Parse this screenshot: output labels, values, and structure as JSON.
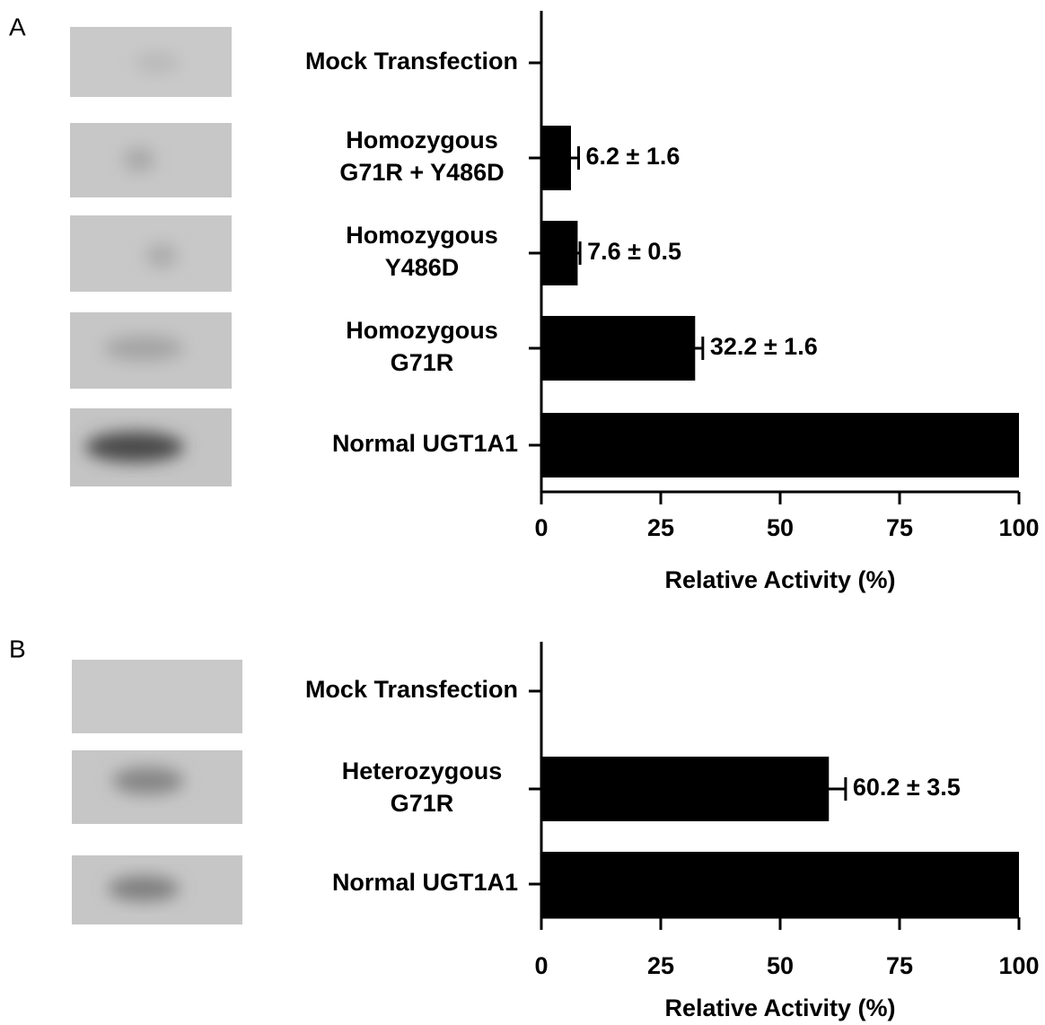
{
  "chart_data": [
    {
      "type": "bar",
      "orientation": "horizontal",
      "panel_label": "A",
      "categories": [
        [
          "Mock Transfection"
        ],
        [
          "Homozygous",
          "G71R + Y486D"
        ],
        [
          "Homozygous",
          "Y486D"
        ],
        [
          "Homozygous",
          "G71R"
        ],
        [
          "Normal UGT1A1"
        ]
      ],
      "values": [
        0,
        6.2,
        7.6,
        32.2,
        100
      ],
      "errors": [
        null,
        1.6,
        0.5,
        1.6,
        null
      ],
      "value_labels": [
        null,
        "6.2 ± 1.6",
        "7.6 ± 0.5",
        "32.2 ± 1.6",
        null
      ],
      "color": "#000000",
      "xlim": [
        0,
        100
      ],
      "xticks": [
        0,
        25,
        50,
        75,
        100
      ],
      "xlabel": "Relative Activity (%)"
    },
    {
      "type": "bar",
      "orientation": "horizontal",
      "panel_label": "B",
      "categories": [
        [
          "Mock Transfection"
        ],
        [
          "Heterozygous",
          "G71R"
        ],
        [
          "Normal UGT1A1"
        ]
      ],
      "values": [
        0,
        60.2,
        100
      ],
      "errors": [
        null,
        3.5,
        null
      ],
      "value_labels": [
        null,
        "60.2 ± 3.5",
        null
      ],
      "color": "#000000",
      "xlim": [
        0,
        100
      ],
      "xticks": [
        0,
        25,
        50,
        75,
        100
      ],
      "xlabel": "Relative Activity (%)"
    }
  ]
}
